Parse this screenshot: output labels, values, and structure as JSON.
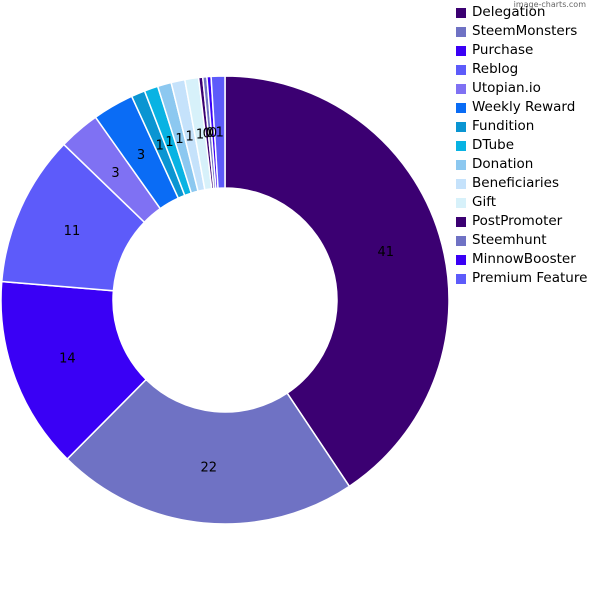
{
  "watermark": "image-charts.com",
  "chart_data": {
    "type": "pie",
    "donut": true,
    "legend_position": "right",
    "slices": [
      {
        "label": "Delegation",
        "value": 41,
        "color": "#3b0072"
      },
      {
        "label": "SteemMonsters",
        "value": 22,
        "color": "#6f72c4"
      },
      {
        "label": "Purchase",
        "value": 14,
        "color": "#3a00f5"
      },
      {
        "label": "Reblog",
        "value": 11,
        "color": "#5d5bfa"
      },
      {
        "label": "Utopian.io",
        "value": 3,
        "color": "#7f71f3"
      },
      {
        "label": "Weekly Reward",
        "value": 3,
        "color": "#0a6cf5"
      },
      {
        "label": "Fundition",
        "value": 1,
        "color": "#0a95d2"
      },
      {
        "label": "DTube",
        "value": 1,
        "color": "#08b3e3"
      },
      {
        "label": "Donation",
        "value": 1,
        "color": "#8cc8f0"
      },
      {
        "label": "Beneficiaries",
        "value": 1,
        "color": "#c5e2fb"
      },
      {
        "label": "Gift",
        "value": 1,
        "color": "#d7f1fa"
      },
      {
        "label": "PostPromoter",
        "value": 0,
        "color": "#3b0072"
      },
      {
        "label": "Steemhunt",
        "value": 0,
        "color": "#6f72c4"
      },
      {
        "label": "MinnowBooster",
        "value": 0,
        "color": "#3a00f5"
      },
      {
        "label": "Premium Feature",
        "value": 1,
        "color": "#5d5bfa"
      }
    ]
  }
}
